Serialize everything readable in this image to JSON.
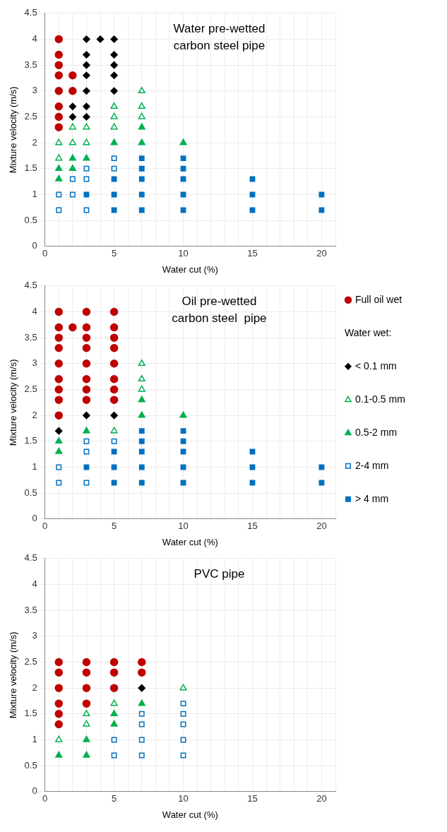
{
  "chart_data": [
    {
      "type": "scatter",
      "title": "Water pre-wetted\ncarbon steel pipe",
      "xlabel": "Water cut (%)",
      "ylabel": "Mixture velocity (m/s)",
      "xlim": [
        0,
        21
      ],
      "ylim": [
        0,
        4.5
      ],
      "xticks": [
        0,
        {
          "value": 1,
          "label": null
        },
        {
          "value": 2,
          "label": null
        },
        {
          "value": 3,
          "label": null
        },
        {
          "value": 4,
          "label": null
        },
        5,
        {
          "value": 6,
          "label": null
        },
        {
          "value": 7,
          "label": null
        },
        {
          "value": 8,
          "label": null
        },
        {
          "value": 9,
          "label": null
        },
        10,
        {
          "value": 11,
          "label": null
        },
        {
          "value": 12,
          "label": null
        },
        {
          "value": 13,
          "label": null
        },
        {
          "value": 14,
          "label": null
        },
        15,
        {
          "value": 16,
          "label": null
        },
        {
          "value": 17,
          "label": null
        },
        {
          "value": 18,
          "label": null
        },
        {
          "value": 19,
          "label": null
        },
        20,
        {
          "value": 21,
          "label": null
        }
      ],
      "yticks": [
        0,
        0.5,
        1,
        1.5,
        2,
        2.5,
        3,
        3.5,
        4,
        4.5
      ],
      "grid": true,
      "legend": false,
      "series": [
        {
          "color": "#c00000",
          "marker": "circle",
          "x": [
            1,
            1,
            1,
            1,
            1,
            1,
            1,
            1,
            2,
            2
          ],
          "values": [
            4,
            3.7,
            3.5,
            3.3,
            3,
            2.7,
            2.5,
            2.3,
            3.3,
            3
          ]
        },
        {
          "color": "#000000",
          "marker": "diamond",
          "x": [
            2,
            2,
            3,
            3,
            3,
            3,
            3,
            3,
            3,
            4,
            5,
            5,
            5,
            5,
            5
          ],
          "values": [
            2.7,
            2.5,
            4,
            3.7,
            3.5,
            3.3,
            3,
            2.7,
            2.5,
            4,
            4,
            3.7,
            3.5,
            3.3,
            3
          ]
        },
        {
          "color": "#00b050",
          "marker": "triangle",
          "x": [
            1,
            1,
            2,
            2,
            3,
            3,
            5,
            5,
            5,
            7,
            7,
            7
          ],
          "values": [
            2,
            1.7,
            2.3,
            2,
            2.3,
            2,
            2.7,
            2.5,
            2.3,
            3,
            2.7,
            2.5
          ]
        },
        {
          "color": "#00b050",
          "marker": "triangle",
          "x": [
            1,
            1,
            2,
            2,
            3,
            5,
            7,
            7,
            10
          ],
          "values": [
            1.5,
            1.3,
            1.7,
            1.5,
            1.7,
            2,
            2.3,
            2,
            2
          ]
        },
        {
          "color": "#0070c0",
          "marker": "square",
          "x": [
            1,
            1,
            2,
            2,
            3,
            3,
            3,
            5,
            5
          ],
          "values": [
            1,
            0.7,
            1.3,
            1,
            1.5,
            1.3,
            0.7,
            1.7,
            1.5
          ]
        },
        {
          "color": "#0070c0",
          "marker": "square",
          "x": [
            3,
            5,
            5,
            5,
            7,
            7,
            7,
            7,
            7,
            10,
            10,
            10,
            10,
            10,
            15,
            15,
            15,
            20,
            20
          ],
          "values": [
            1,
            1.3,
            1,
            0.7,
            1.7,
            1.5,
            1.3,
            1,
            0.7,
            1.7,
            1.5,
            1.3,
            1,
            0.7,
            1.3,
            1,
            0.7,
            1,
            0.7
          ]
        }
      ]
    },
    {
      "type": "scatter",
      "title": "Oil pre-wetted\ncarbon steel  pipe",
      "xlabel": "Water cut (%)",
      "ylabel": "Mixture velocity (m/s)",
      "xlim": [
        0,
        21
      ],
      "ylim": [
        0,
        4.5
      ],
      "xticks": [
        0,
        {
          "value": 1,
          "label": null
        },
        {
          "value": 2,
          "label": null
        },
        {
          "value": 3,
          "label": null
        },
        {
          "value": 4,
          "label": null
        },
        5,
        {
          "value": 6,
          "label": null
        },
        {
          "value": 7,
          "label": null
        },
        {
          "value": 8,
          "label": null
        },
        {
          "value": 9,
          "label": null
        },
        10,
        {
          "value": 11,
          "label": null
        },
        {
          "value": 12,
          "label": null
        },
        {
          "value": 13,
          "label": null
        },
        {
          "value": 14,
          "label": null
        },
        15,
        {
          "value": 16,
          "label": null
        },
        {
          "value": 17,
          "label": null
        },
        {
          "value": 18,
          "label": null
        },
        {
          "value": 19,
          "label": null
        },
        20,
        {
          "value": 21,
          "label": null
        }
      ],
      "yticks": [
        0,
        0.5,
        1,
        1.5,
        2,
        2.5,
        3,
        3.5,
        4,
        4.5
      ],
      "grid": true,
      "legend": "right",
      "legend_title": "Water wet:",
      "series": [
        {
          "name": "Full oil wet",
          "color": "#c00000",
          "marker": "circle",
          "x": [
            1,
            1,
            1,
            1,
            1,
            1,
            1,
            1,
            1,
            2,
            3,
            3,
            3,
            3,
            3,
            3,
            3,
            3,
            5,
            5,
            5,
            5,
            5,
            5,
            5,
            5
          ],
          "values": [
            4,
            3.7,
            3.5,
            3.3,
            3,
            2.7,
            2.5,
            2.3,
            2,
            3.7,
            4,
            3.7,
            3.5,
            3.3,
            3,
            2.7,
            2.5,
            2.3,
            4,
            3.7,
            3.5,
            3.3,
            3,
            2.7,
            2.5,
            2.3
          ]
        },
        {
          "name": "< 0.1 mm",
          "color": "#000000",
          "marker": "diamond",
          "x": [
            1,
            3,
            5
          ],
          "values": [
            1.7,
            2,
            2
          ]
        },
        {
          "name": "0.1-0.5 mm",
          "color": "#00b050",
          "marker": "triangle",
          "x": [
            5,
            7,
            7,
            7
          ],
          "values": [
            1.7,
            3,
            2.7,
            2.5
          ]
        },
        {
          "name": "0.5-2 mm",
          "color": "#00b050",
          "marker": "triangle",
          "x": [
            1,
            1,
            3,
            7,
            7,
            10
          ],
          "values": [
            1.5,
            1.3,
            1.7,
            2.3,
            2,
            2
          ]
        },
        {
          "name": "2-4 mm",
          "color": "#0070c0",
          "marker": "square",
          "x": [
            1,
            1,
            3,
            3,
            3,
            5
          ],
          "values": [
            1,
            0.7,
            1.5,
            1.3,
            0.7,
            1.5
          ]
        },
        {
          "name": "> 4 mm",
          "color": "#0070c0",
          "marker": "square",
          "x": [
            3,
            5,
            5,
            5,
            7,
            7,
            7,
            7,
            7,
            10,
            10,
            10,
            10,
            10,
            15,
            15,
            15,
            20,
            20
          ],
          "values": [
            1,
            1.3,
            1,
            0.7,
            1.7,
            1.5,
            1.3,
            1,
            0.7,
            1.7,
            1.5,
            1.3,
            1,
            0.7,
            1.3,
            1,
            0.7,
            1,
            0.7
          ]
        }
      ]
    },
    {
      "type": "scatter",
      "title": "PVC pipe",
      "xlabel": "Water cut (%)",
      "ylabel": "Mixture velocity (m/s)",
      "xlim": [
        0,
        21
      ],
      "ylim": [
        0,
        4.5
      ],
      "xticks": [
        0,
        {
          "value": 1,
          "label": null
        },
        {
          "value": 2,
          "label": null
        },
        {
          "value": 3,
          "label": null
        },
        {
          "value": 4,
          "label": null
        },
        5,
        {
          "value": 6,
          "label": null
        },
        {
          "value": 7,
          "label": null
        },
        {
          "value": 8,
          "label": null
        },
        {
          "value": 9,
          "label": null
        },
        10,
        {
          "value": 11,
          "label": null
        },
        {
          "value": 12,
          "label": null
        },
        {
          "value": 13,
          "label": null
        },
        {
          "value": 14,
          "label": null
        },
        15,
        {
          "value": 16,
          "label": null
        },
        {
          "value": 17,
          "label": null
        },
        {
          "value": 18,
          "label": null
        },
        {
          "value": 19,
          "label": null
        },
        20,
        {
          "value": 21,
          "label": null
        }
      ],
      "yticks": [
        0,
        0.5,
        1,
        1.5,
        2,
        2.5,
        3,
        3.5,
        4,
        4.5
      ],
      "grid": true,
      "legend": false,
      "series": [
        {
          "color": "#c00000",
          "marker": "circle",
          "x": [
            1,
            1,
            1,
            1,
            1,
            1,
            3,
            3,
            3,
            3,
            5,
            5,
            5,
            7,
            7
          ],
          "values": [
            2.5,
            2.3,
            2,
            1.7,
            1.5,
            1.3,
            2.5,
            2.3,
            2,
            1.7,
            2.5,
            2.3,
            2,
            2.5,
            2.3
          ]
        },
        {
          "color": "#000000",
          "marker": "diamond",
          "x": [
            7
          ],
          "values": [
            2
          ]
        },
        {
          "color": "#00b050",
          "marker": "triangle",
          "x": [
            1,
            3,
            3,
            5,
            10
          ],
          "values": [
            1,
            1.5,
            1.3,
            1.7,
            2
          ]
        },
        {
          "color": "#00b050",
          "marker": "triangle",
          "x": [
            1,
            3,
            3,
            5,
            5,
            7
          ],
          "values": [
            0.7,
            1,
            0.7,
            1.5,
            1.3,
            1.7
          ]
        },
        {
          "color": "#0070c0",
          "marker": "square",
          "x": [
            5,
            5,
            7,
            7,
            7,
            7,
            10,
            10,
            10,
            10,
            10
          ],
          "values": [
            1,
            0.7,
            1.5,
            1.3,
            1,
            0.7,
            1.7,
            1.5,
            1.3,
            1,
            0.7
          ]
        }
      ]
    }
  ]
}
